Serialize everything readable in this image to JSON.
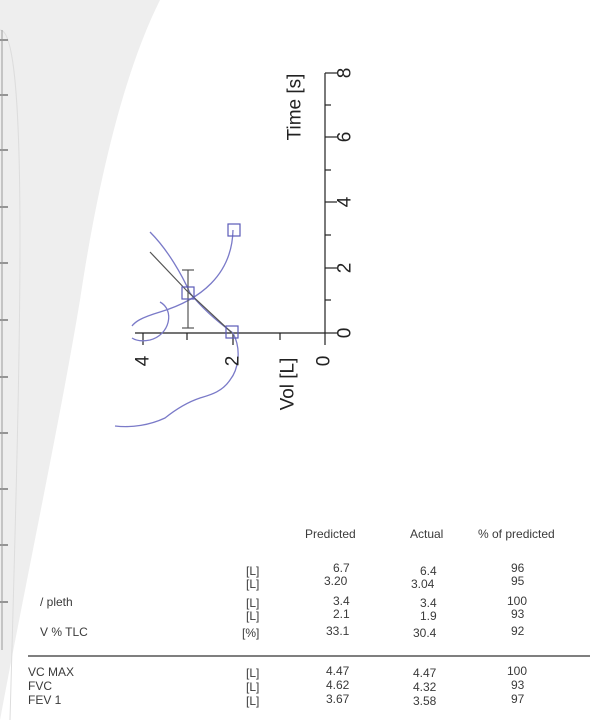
{
  "plot": {
    "time_axis_title": "Time [s]",
    "vol_axis_title": "Vol [L]",
    "time_ticks": [
      "0",
      "2",
      "4",
      "6",
      "8"
    ],
    "vol_ticks": [
      "4",
      "2",
      "0"
    ]
  },
  "table": {
    "headers": [
      "Predicted",
      "Actual",
      "% of predicted"
    ],
    "units": [
      "[L]",
      "[L]",
      "[L]",
      "[L]",
      "[%]",
      "[L]",
      "[L]",
      "[L]"
    ],
    "row_labels": [
      "",
      "",
      "/ pleth",
      "",
      "V % TLC",
      "VC MAX",
      "FVC",
      "FEV 1"
    ],
    "predicted": [
      "6.7",
      "3.20",
      "3.4",
      "2.1",
      "33.1",
      "4.47",
      "4.62",
      "3.67"
    ],
    "actual": [
      "6.4",
      "3.04",
      "3.4",
      "1.9",
      "30.4",
      "4.47",
      "4.32",
      "3.58"
    ],
    "percent": [
      "96",
      "95",
      "100",
      "93",
      "92",
      "100",
      "93",
      "97"
    ]
  },
  "colors": {
    "curve": "#7a7ac8",
    "axis": "#222222",
    "page": "#ffffff"
  }
}
